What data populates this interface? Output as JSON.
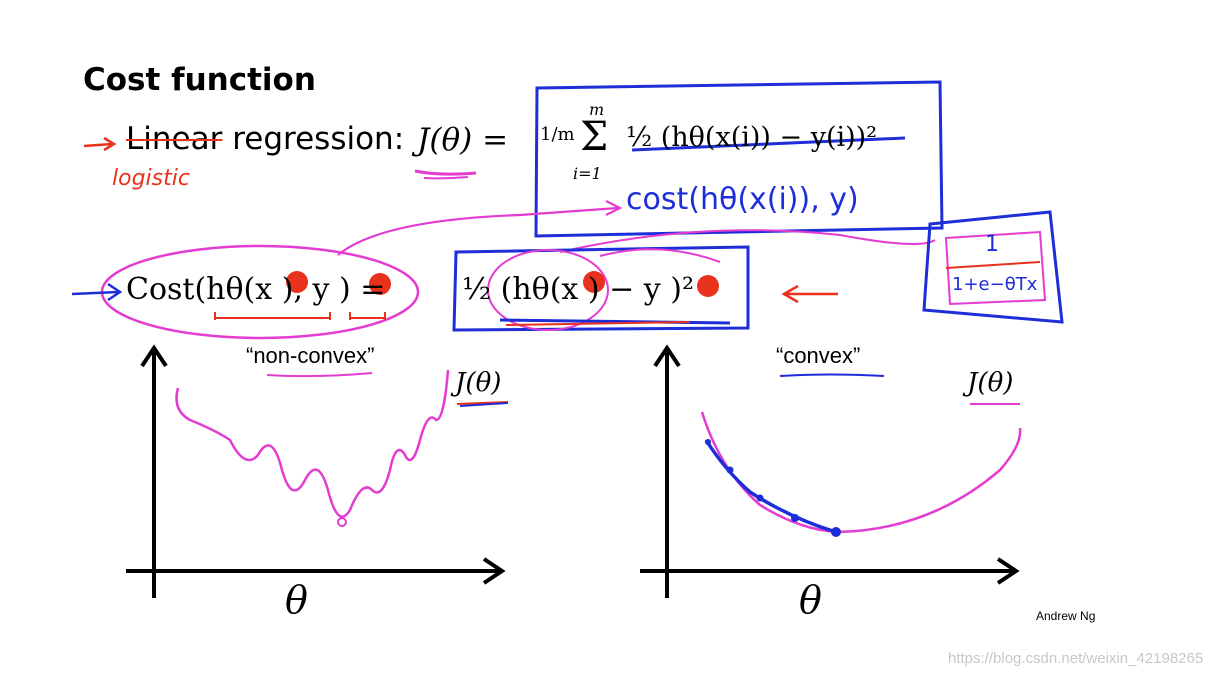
{
  "slide": {
    "title": "Cost function",
    "linear_word": "Linear",
    "regression_word": "regression:",
    "handwritten_logistic": "logistic",
    "J_lhs": "J(θ) =",
    "frac_1_over_m": "1/m",
    "sum_upper": "m",
    "sum_symbol": "Σ",
    "sum_lower": "i=1",
    "sum_term": "½ (hθ(x(i)) − y(i))²",
    "handwritten_cost": "cost(hθ(x(i)), y)",
    "handwritten_sigmoid_num": "1",
    "handwritten_sigmoid_den": "1+e−θTx",
    "cost_lhs": "Cost(hθ(x  ), y  ) =",
    "cost_rhs": "½ (hθ(x  ) − y  )²",
    "caption_nonconvex": "“non-convex”",
    "caption_convex": "“convex”",
    "J_label_left": "J(θ)",
    "J_label_right": "J(θ)",
    "theta_left": "θ",
    "theta_right": "θ",
    "credit": "Andrew Ng",
    "watermark": "https://blog.csdn.net/weixin_42198265"
  },
  "colors": {
    "annotation_red": "#e8321e",
    "annotation_blue": "#1d2ed8",
    "annotation_magenta": "#e43bd0"
  }
}
